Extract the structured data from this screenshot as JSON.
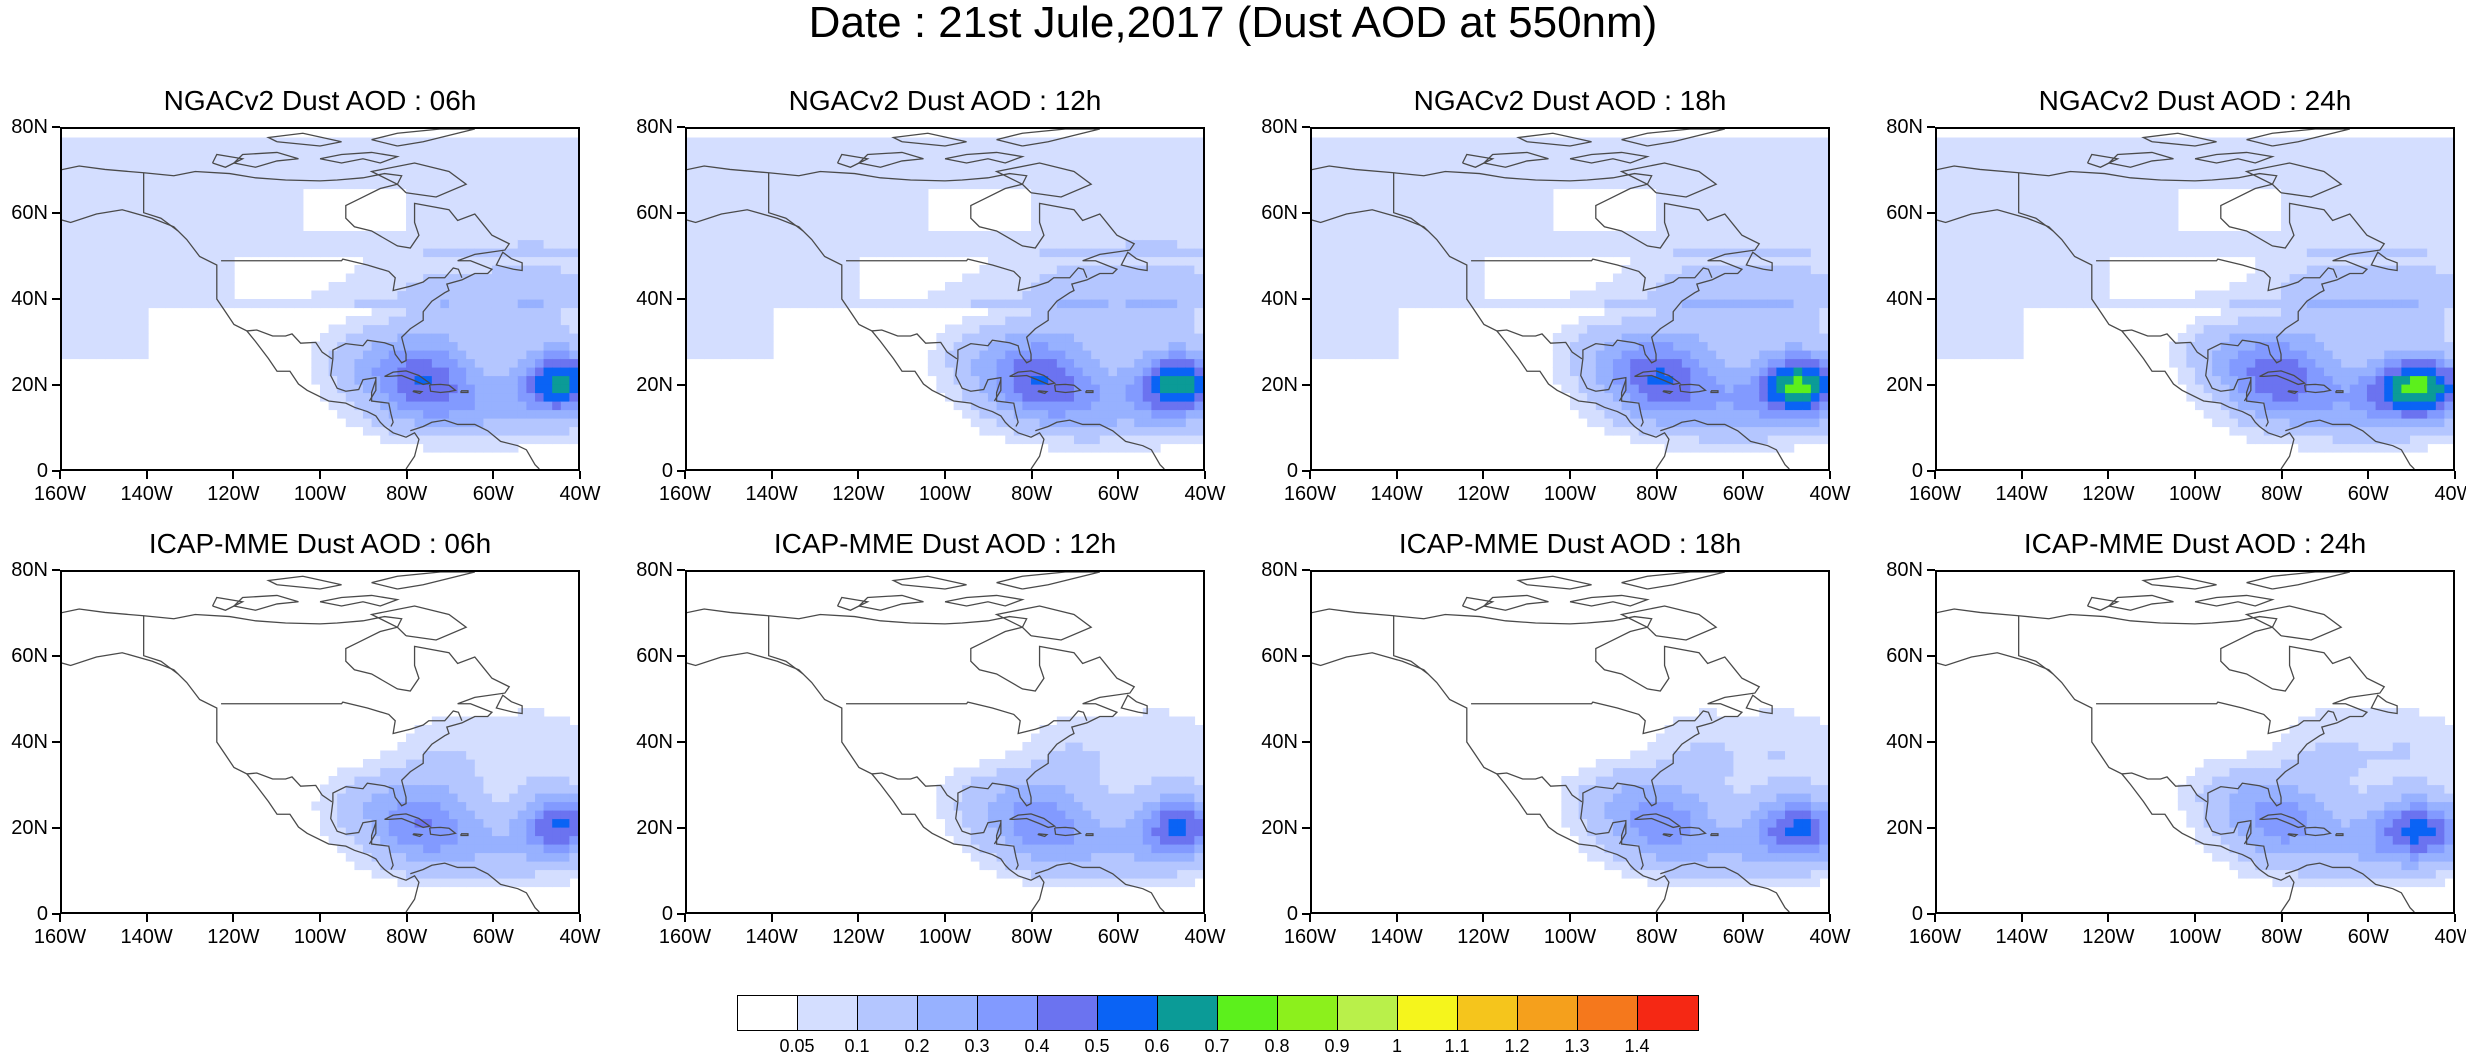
{
  "main_title": "Date : 21st Jule,2017 (Dust AOD at 550nm)",
  "colors": {
    "palette": [
      "#ffffff",
      "#d4deff",
      "#b4c6ff",
      "#97b1ff",
      "#829aff",
      "#6b73f0",
      "#0a63f5",
      "#0b9b97",
      "#5cf01c",
      "#8cf01c",
      "#b9f04a",
      "#f5f51c",
      "#f5c51c",
      "#f5a01c",
      "#f5781c",
      "#f52814"
    ],
    "coastline": "#4a4a4a"
  },
  "colorbar": {
    "labels": [
      "0.05",
      "0.1",
      "0.2",
      "0.3",
      "0.4",
      "0.5",
      "0.6",
      "0.7",
      "0.8",
      "0.9",
      "1",
      "1.1",
      "1.2",
      "1.3",
      "1.4"
    ]
  },
  "axes": {
    "y_ticks": [
      "80N",
      "60N",
      "40N",
      "20N",
      "0"
    ],
    "x_ticks": [
      "160W",
      "140W",
      "120W",
      "100W",
      "80W",
      "60W",
      "40W"
    ],
    "lon_range": [
      -160,
      -40
    ],
    "lat_range": [
      0,
      80
    ]
  },
  "panels": [
    {
      "title": "NGACv2 Dust AOD : 06h",
      "model": "NGACv2",
      "hour": "06h",
      "intensity": 1.0,
      "plume_shift": 0,
      "north_coverage": 1.0
    },
    {
      "title": "NGACv2 Dust AOD : 12h",
      "model": "NGACv2",
      "hour": "12h",
      "intensity": 1.05,
      "plume_shift": 1,
      "north_coverage": 1.0
    },
    {
      "title": "NGACv2 Dust AOD : 18h",
      "model": "NGACv2",
      "hour": "18h",
      "intensity": 1.1,
      "plume_shift": 2,
      "north_coverage": 0.9
    },
    {
      "title": "NGACv2 Dust AOD : 24h",
      "model": "NGACv2",
      "hour": "24h",
      "intensity": 1.1,
      "plume_shift": 3,
      "north_coverage": 0.85
    },
    {
      "title": "ICAP-MME Dust AOD : 06h",
      "model": "ICAP-MME",
      "hour": "06h",
      "intensity": 0.8,
      "plume_shift": 0,
      "north_coverage": 0
    },
    {
      "title": "ICAP-MME Dust AOD : 12h",
      "model": "ICAP-MME",
      "hour": "12h",
      "intensity": 0.8,
      "plume_shift": 1,
      "north_coverage": 0
    },
    {
      "title": "ICAP-MME Dust AOD : 18h",
      "model": "ICAP-MME",
      "hour": "18h",
      "intensity": 0.8,
      "plume_shift": 2,
      "north_coverage": 0
    },
    {
      "title": "ICAP-MME Dust AOD : 24h",
      "model": "ICAP-MME",
      "hour": "24h",
      "intensity": 0.8,
      "plume_shift": 3,
      "north_coverage": 0
    }
  ]
}
